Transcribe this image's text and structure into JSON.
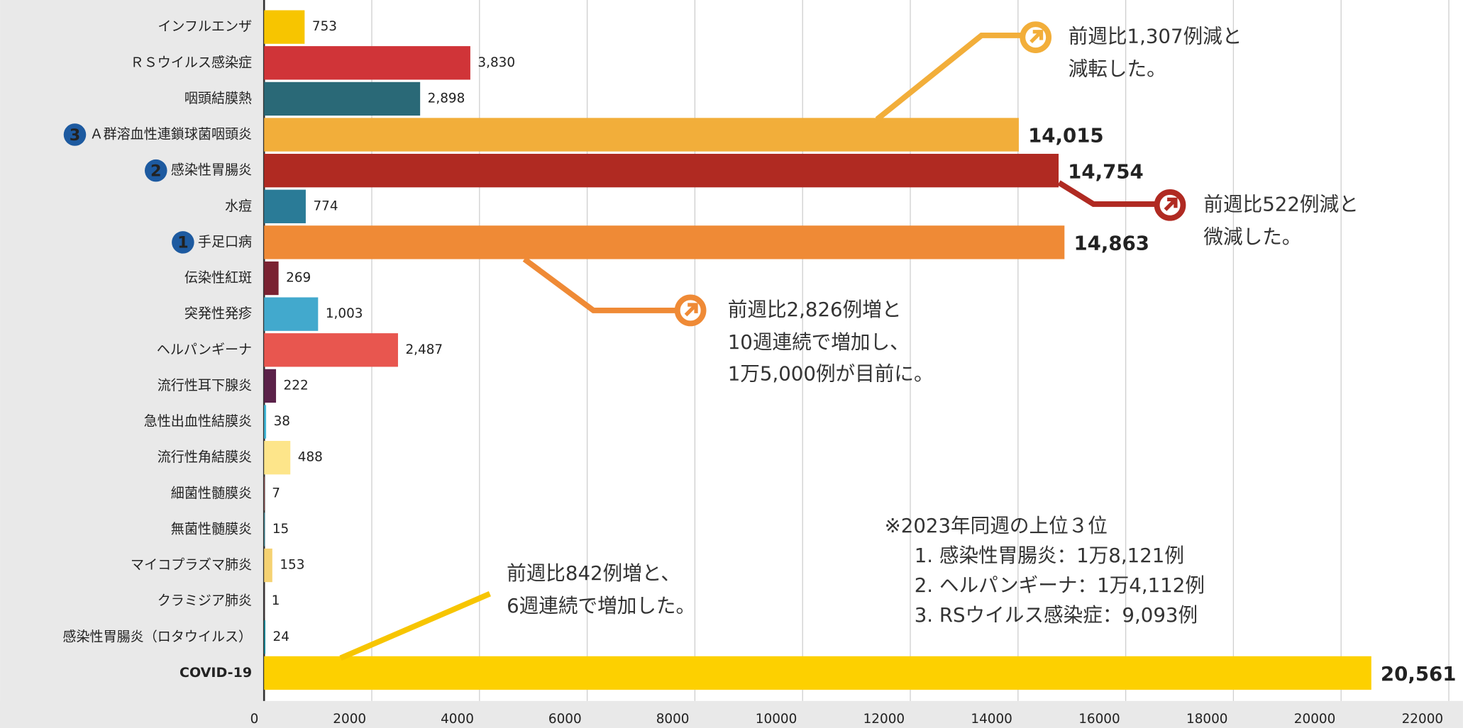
{
  "chart_data": {
    "type": "bar",
    "orientation": "horizontal",
    "categories": [
      "インフルエンザ",
      "ＲＳウイルス感染症",
      "咽頭結膜熱",
      "Ａ群溶血性連鎖球菌咽頭炎",
      "感染性胃腸炎",
      "水痘",
      "手足口病",
      "伝染性紅斑",
      "突発性発疹",
      "ヘルパンギーナ",
      "流行性耳下腺炎",
      "急性出血性結膜炎",
      "流行性角結膜炎",
      "細菌性髄膜炎",
      "無菌性髄膜炎",
      "マイコプラズマ肺炎",
      "クラミジア肺炎",
      "感染性胃腸炎（ロタウイルス）",
      "COVID-19"
    ],
    "values": [
      753,
      3830,
      2898,
      14015,
      14754,
      774,
      14863,
      269,
      1003,
      2487,
      222,
      38,
      488,
      7,
      15,
      153,
      1,
      24,
      20561
    ],
    "value_labels": [
      "753",
      "3,830",
      "2,898",
      "14,015",
      "14,754",
      "774",
      "14,863",
      "269",
      "1,003",
      "2,487",
      "222",
      "38",
      "488",
      "7",
      "15",
      "153",
      "1",
      "24",
      "20,561"
    ],
    "ranks": [
      null,
      null,
      null,
      3,
      2,
      null,
      1,
      null,
      null,
      null,
      null,
      null,
      null,
      null,
      null,
      null,
      null,
      null,
      null
    ],
    "colors": [
      "#f7c500",
      "#d03438",
      "#2a6977",
      "#f2ae3a",
      "#b02a22",
      "#2a7b97",
      "#ef8a36",
      "#7a2232",
      "#42a9cd",
      "#e8564f",
      "#5b2149",
      "#42b9d9",
      "#fde58a",
      "#e06262",
      "#3a8b9b",
      "#f5d272",
      "#e06080",
      "#1b8b9b",
      "#fdd000"
    ],
    "xlim": [
      0,
      22000
    ],
    "xticks": [
      0,
      2000,
      4000,
      6000,
      8000,
      10000,
      12000,
      14000,
      16000,
      18000,
      20000,
      22000
    ],
    "grid": true,
    "annotations": [
      {
        "lines": [
          "前週比1,307例減と",
          "減転した。"
        ]
      },
      {
        "lines": [
          "前週比522例減と",
          "微減した。"
        ]
      },
      {
        "lines": [
          "前週比2,826例増と",
          "10週連続で増加し、",
          "1万5,000例が目前に。"
        ]
      },
      {
        "lines": [
          "前週比842例増と、",
          "6週連続で増加した。"
        ]
      }
    ],
    "note": {
      "title": "※2023年同週の上位３位",
      "items": [
        "1. 感染性胃腸炎：1万8,121例",
        "2. ヘルパンギーナ：1万4,112例",
        "3. RSウイルス感染症：9,093例"
      ]
    }
  }
}
